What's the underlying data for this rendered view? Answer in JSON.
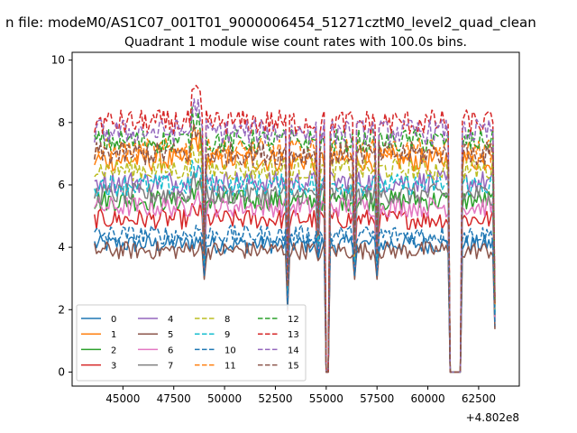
{
  "figure": {
    "suptitle": "n file: modeM0/AS1C07_001T01_9000006454_51271cztM0_level2_quad_clean",
    "title": "Quadrant 1 module wise count rates with 100.0s bins.",
    "offset_label": "+4.802e8"
  },
  "chart_data": {
    "type": "line",
    "title": "Quadrant 1 module wise count rates with 100.0s bins.",
    "xlabel": "",
    "ylabel": "",
    "x_offset": 480200000,
    "xlim": [
      42500,
      64500
    ],
    "ylim": [
      -0.45,
      10.25
    ],
    "xticks": [
      45000,
      47500,
      50000,
      52500,
      55000,
      57500,
      60000,
      62500
    ],
    "xtick_labels": [
      "45000",
      "47500",
      "50000",
      "52500",
      "55000",
      "57500",
      "60000",
      "62500"
    ],
    "yticks": [
      0,
      2,
      4,
      6,
      8,
      10
    ],
    "ytick_labels": [
      "0",
      "2",
      "4",
      "6",
      "8",
      "10"
    ],
    "grid": false,
    "legend_placement": "lower-left",
    "legend_columns": 4,
    "x_start": 43600,
    "x_end": 63300,
    "bin_width": 100,
    "gaps": [
      {
        "from": 55000,
        "to": 55100
      },
      {
        "from": 61100,
        "to": 61600
      }
    ],
    "dips": [
      {
        "x": 49000,
        "to": 3.0
      },
      {
        "x": 53100,
        "to": 2.0
      },
      {
        "x": 54600,
        "to": 3.6
      },
      {
        "x": 56400,
        "to": 3.0
      },
      {
        "x": 57500,
        "to": 3.0
      },
      {
        "x": 63300,
        "to": 1.4
      }
    ],
    "series": [
      {
        "name": "0",
        "color": "#1f77b4",
        "dash": "solid",
        "mean": 4.1
      },
      {
        "name": "1",
        "color": "#ff7f0e",
        "dash": "solid",
        "mean": 6.8
      },
      {
        "name": "2",
        "color": "#2ca02c",
        "dash": "solid",
        "mean": 5.5
      },
      {
        "name": "3",
        "color": "#d62728",
        "dash": "solid",
        "mean": 4.9
      },
      {
        "name": "4",
        "color": "#9467bd",
        "dash": "solid",
        "mean": 6.1
      },
      {
        "name": "5",
        "color": "#8c564b",
        "dash": "solid",
        "mean": 3.9
      },
      {
        "name": "6",
        "color": "#e377c2",
        "dash": "solid",
        "mean": 5.3
      },
      {
        "name": "7",
        "color": "#7f7f7f",
        "dash": "solid",
        "mean": 5.7
      },
      {
        "name": "8",
        "color": "#bcbd22",
        "dash": "dashed",
        "mean": 6.5
      },
      {
        "name": "9",
        "color": "#17becf",
        "dash": "dashed",
        "mean": 6.0
      },
      {
        "name": "10",
        "color": "#1f77b4",
        "dash": "dashed",
        "mean": 4.4
      },
      {
        "name": "11",
        "color": "#ff7f0e",
        "dash": "dashed",
        "mean": 7.1
      },
      {
        "name": "12",
        "color": "#2ca02c",
        "dash": "dashed",
        "mean": 7.4
      },
      {
        "name": "13",
        "color": "#d62728",
        "dash": "dashed",
        "mean": 8.0
      },
      {
        "name": "14",
        "color": "#9467bd",
        "dash": "dashed",
        "mean": 7.7
      },
      {
        "name": "15",
        "color": "#8c564b",
        "dash": "dashed",
        "mean": 7.0
      }
    ]
  }
}
